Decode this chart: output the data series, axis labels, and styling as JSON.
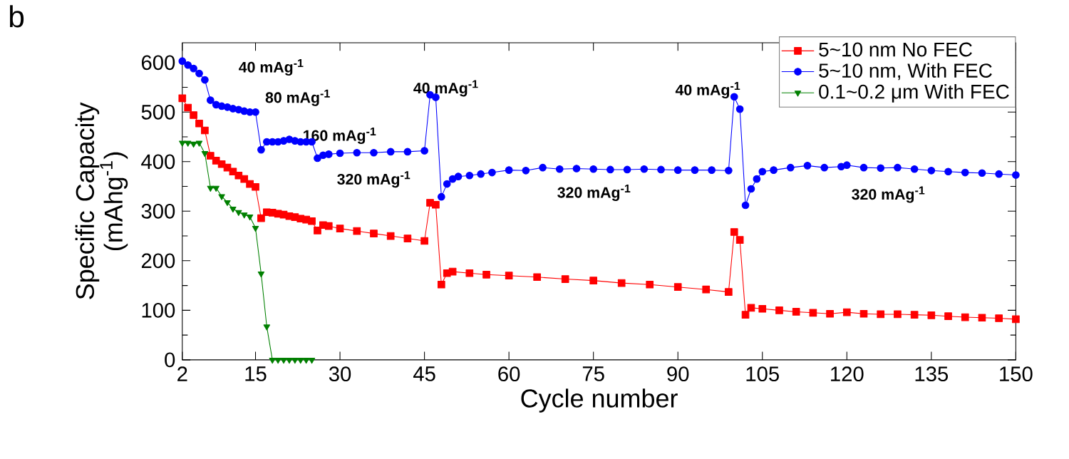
{
  "chart_data": {
    "type": "line",
    "xlabel": "Cycle number",
    "ylabel": "Specific Capacity (mAhg$^{-1}$)",
    "xlim": [
      2,
      150
    ],
    "ylim": [
      0,
      640
    ],
    "xticks": [
      2,
      15,
      30,
      45,
      60,
      75,
      90,
      105,
      120,
      135,
      150
    ],
    "yticks": [
      0,
      100,
      200,
      300,
      400,
      500,
      600
    ],
    "legend": "top right",
    "grid": false,
    "line_style": "solid",
    "series": [
      {
        "name": "5~10 nm No FEC",
        "color": "#ff0000",
        "marker": "square",
        "x": [
          2,
          3,
          4,
          5,
          6,
          7,
          8,
          9,
          10,
          11,
          12,
          13,
          14,
          15,
          16,
          17,
          18,
          19,
          20,
          21,
          22,
          23,
          24,
          25,
          26,
          27,
          28,
          30,
          33,
          36,
          39,
          42,
          45,
          46,
          47,
          48,
          49,
          50,
          53,
          56,
          60,
          65,
          70,
          75,
          80,
          85,
          90,
          95,
          99,
          100,
          101,
          102,
          103,
          105,
          108,
          111,
          114,
          117,
          120,
          123,
          126,
          129,
          132,
          135,
          138,
          141,
          144,
          147,
          150
        ],
        "values": [
          528,
          509,
          494,
          477,
          463,
          412,
          402,
          395,
          388,
          380,
          372,
          365,
          355,
          349,
          286,
          298,
          297,
          295,
          293,
          290,
          288,
          285,
          283,
          280,
          261,
          272,
          270,
          265,
          260,
          255,
          250,
          245,
          240,
          317,
          313,
          152,
          175,
          178,
          175,
          172,
          170,
          167,
          163,
          160,
          155,
          152,
          147,
          142,
          137,
          258,
          242,
          91,
          105,
          103,
          100,
          97,
          95,
          93,
          96,
          93,
          92,
          92,
          91,
          90,
          88,
          86,
          85,
          84,
          82
        ]
      },
      {
        "name": "5~10 nm, With FEC",
        "color": "#0000ff",
        "marker": "circle",
        "x": [
          2,
          3,
          4,
          5,
          6,
          7,
          8,
          9,
          10,
          11,
          12,
          13,
          14,
          15,
          16,
          17,
          18,
          19,
          20,
          21,
          22,
          23,
          24,
          25,
          26,
          27,
          28,
          30,
          33,
          36,
          39,
          42,
          45,
          46,
          47,
          48,
          49,
          50,
          51,
          53,
          55,
          57,
          60,
          63,
          66,
          69,
          72,
          75,
          78,
          81,
          84,
          87,
          90,
          93,
          96,
          99,
          100,
          101,
          102,
          103,
          104,
          105,
          107,
          110,
          113,
          116,
          119,
          120,
          123,
          126,
          129,
          132,
          135,
          138,
          141,
          144,
          147,
          150
        ],
        "values": [
          603,
          595,
          588,
          578,
          565,
          524,
          515,
          512,
          510,
          507,
          505,
          502,
          500,
          500,
          424,
          440,
          440,
          440,
          442,
          445,
          442,
          440,
          440,
          440,
          407,
          413,
          415,
          417,
          418,
          418,
          420,
          420,
          422,
          535,
          530,
          329,
          355,
          365,
          370,
          372,
          375,
          378,
          383,
          382,
          388,
          385,
          386,
          385,
          384,
          384,
          385,
          384,
          383,
          383,
          383,
          382,
          531,
          506,
          312,
          345,
          365,
          380,
          383,
          388,
          392,
          388,
          390,
          393,
          388,
          387,
          388,
          385,
          382,
          380,
          378,
          377,
          375,
          373
        ]
      },
      {
        "name": "0.1~0.2 μm  With FEC",
        "color": "#008000",
        "marker": "triangle",
        "x": [
          2,
          3,
          4,
          5,
          6,
          7,
          8,
          9,
          10,
          11,
          12,
          13,
          14,
          15,
          16,
          17,
          18,
          19,
          20,
          21,
          22,
          23,
          24,
          25
        ],
        "values": [
          438,
          438,
          436,
          438,
          417,
          347,
          347,
          330,
          318,
          305,
          298,
          293,
          289,
          266,
          174,
          67,
          0,
          0,
          0,
          0,
          0,
          0,
          0,
          0
        ]
      }
    ],
    "annotations": [
      "b",
      "40 mAg$^{-1}$",
      "80 mAg$^{-1}$",
      "160 mAg$^{-1}$",
      "320 mAg$^{-1}$",
      "40 mAg$^{-1}$",
      "40 mAg$^{-1}$",
      "320 mAg$^{-1}$",
      "320 mAg$^{-1}$"
    ]
  }
}
